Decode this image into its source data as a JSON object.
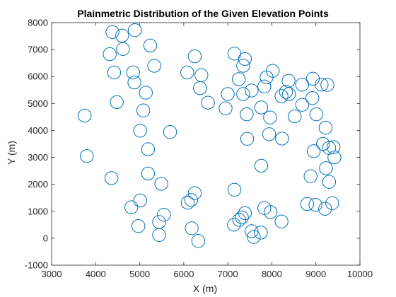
{
  "colors": {
    "marker": "#0072BD",
    "axis": "#262626",
    "background": "#ffffff"
  },
  "chart_data": {
    "type": "scatter",
    "title": "Plainmetric Distribution of the Given Elevation Points",
    "xlabel": "X (m)",
    "ylabel": "Y (m)",
    "xlim": [
      3000,
      10000
    ],
    "ylim": [
      -1000,
      8000
    ],
    "xticks": [
      3000,
      4000,
      5000,
      6000,
      7000,
      8000,
      9000,
      10000
    ],
    "yticks": [
      -1000,
      0,
      1000,
      2000,
      3000,
      4000,
      5000,
      6000,
      7000,
      8000
    ],
    "grid": false,
    "box": true,
    "marker": "o",
    "points": [
      [
        4380,
        7650
      ],
      [
        4600,
        7520
      ],
      [
        4890,
        7720
      ],
      [
        4320,
        6830
      ],
      [
        4620,
        7020
      ],
      [
        5240,
        7150
      ],
      [
        4420,
        6150
      ],
      [
        4850,
        6150
      ],
      [
        5330,
        6400
      ],
      [
        4880,
        5780
      ],
      [
        5140,
        5400
      ],
      [
        4480,
        5050
      ],
      [
        5080,
        4740
      ],
      [
        3750,
        4550
      ],
      [
        5010,
        3990
      ],
      [
        5690,
        3940
      ],
      [
        3800,
        3050
      ],
      [
        5190,
        3300
      ],
      [
        5190,
        2400
      ],
      [
        4360,
        2230
      ],
      [
        5490,
        2020
      ],
      [
        4810,
        1150
      ],
      [
        5010,
        1400
      ],
      [
        4970,
        450
      ],
      [
        5440,
        600
      ],
      [
        5550,
        870
      ],
      [
        5440,
        120
      ],
      [
        6090,
        1320
      ],
      [
        6170,
        1420
      ],
      [
        6250,
        1670
      ],
      [
        6180,
        370
      ],
      [
        6330,
        -100
      ],
      [
        6250,
        6750
      ],
      [
        6080,
        6150
      ],
      [
        6400,
        6050
      ],
      [
        6370,
        5570
      ],
      [
        6550,
        5030
      ],
      [
        7150,
        6850
      ],
      [
        7390,
        6650
      ],
      [
        7350,
        6400
      ],
      [
        7250,
        5900
      ],
      [
        7000,
        5350
      ],
      [
        6950,
        4820
      ],
      [
        7350,
        5350
      ],
      [
        7540,
        5480
      ],
      [
        7430,
        4600
      ],
      [
        7760,
        4850
      ],
      [
        7830,
        5630
      ],
      [
        7880,
        5970
      ],
      [
        8020,
        6210
      ],
      [
        7440,
        3690
      ],
      [
        7960,
        4480
      ],
      [
        7940,
        3860
      ],
      [
        8230,
        3700
      ],
      [
        7760,
        2690
      ],
      [
        7150,
        1800
      ],
      [
        7260,
        680
      ],
      [
        7320,
        770
      ],
      [
        7390,
        930
      ],
      [
        7140,
        500
      ],
      [
        7540,
        260
      ],
      [
        7590,
        50
      ],
      [
        7750,
        210
      ],
      [
        7830,
        1120
      ],
      [
        7970,
        970
      ],
      [
        8220,
        620
      ],
      [
        8220,
        5270
      ],
      [
        8320,
        5430
      ],
      [
        8390,
        5350
      ],
      [
        8380,
        5840
      ],
      [
        8520,
        4520
      ],
      [
        8690,
        4950
      ],
      [
        8690,
        5700
      ],
      [
        8930,
        5920
      ],
      [
        8920,
        5200
      ],
      [
        9130,
        5700
      ],
      [
        9260,
        5690
      ],
      [
        9010,
        4600
      ],
      [
        9220,
        4100
      ],
      [
        8950,
        3230
      ],
      [
        9160,
        3500
      ],
      [
        9300,
        3350
      ],
      [
        9420,
        3000
      ],
      [
        9400,
        3380
      ],
      [
        9230,
        2600
      ],
      [
        9300,
        2090
      ],
      [
        8880,
        2300
      ],
      [
        8800,
        1270
      ],
      [
        8990,
        1240
      ],
      [
        9210,
        1090
      ],
      [
        9370,
        1300
      ]
    ]
  }
}
